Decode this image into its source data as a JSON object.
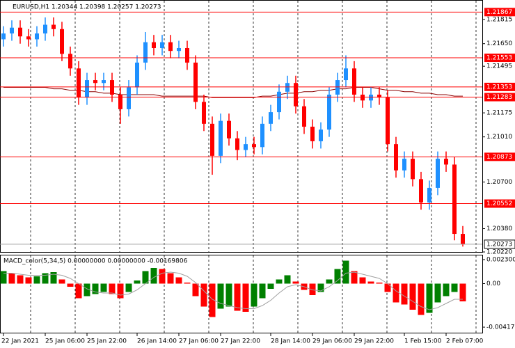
{
  "chart_data": [
    {
      "type": "candlestick",
      "title": "EURUSD,H1  1.20344 1.20398 1.20257 1.20273",
      "categories": [
        "22 Jan 2021",
        null,
        null,
        null,
        null,
        "25 Jan 06:00",
        null,
        null,
        null,
        null,
        "25 Jan 22:00",
        null,
        null,
        null,
        null,
        null,
        "26 Jan 14:00",
        null,
        null,
        null,
        null,
        "27 Jan 06:00",
        null,
        null,
        null,
        null,
        "27 Jan 22:00",
        null,
        null,
        null,
        null,
        null,
        "28 Jan 14:00",
        null,
        null,
        null,
        null,
        "29 Jan 06:00",
        null,
        null,
        null,
        null,
        "29 Jan 22:00",
        null,
        null,
        null,
        null,
        null,
        "1 Feb 15:00",
        null,
        null,
        null,
        null,
        "2 Feb 07:00",
        null,
        null
      ],
      "open": [
        1.2168,
        1.2172,
        1.2176,
        1.217,
        1.2168,
        1.2172,
        1.2178,
        1.2175,
        1.2158,
        1.2148,
        1.2128,
        1.214,
        1.2138,
        1.214,
        1.213,
        1.212,
        1.2135,
        1.2152,
        1.2166,
        1.2162,
        1.2166,
        1.216,
        1.2162,
        1.2152,
        1.2125,
        1.211,
        1.2088,
        1.2112,
        1.21,
        1.2092,
        1.2096,
        1.2094,
        1.211,
        1.2118,
        1.2132,
        1.2138,
        1.2122,
        1.2108,
        1.2098,
        1.2106,
        1.213,
        1.214,
        1.2148,
        1.213,
        1.2126,
        1.213,
        1.2128,
        1.2096,
        1.2078,
        1.2086,
        1.2072,
        1.2056,
        1.2066,
        1.2086,
        1.2082,
        1.20344
      ],
      "high": [
        1.2177,
        1.2181,
        1.2181,
        1.2175,
        1.2177,
        1.2183,
        1.2183,
        1.218,
        1.2163,
        1.2153,
        1.2145,
        1.2145,
        1.2145,
        1.2145,
        1.2135,
        1.214,
        1.2157,
        1.2173,
        1.2171,
        1.2171,
        1.2171,
        1.2167,
        1.2167,
        1.2157,
        1.213,
        1.2115,
        1.2117,
        1.2117,
        1.2105,
        1.2101,
        1.2101,
        1.2115,
        1.2123,
        1.2137,
        1.2143,
        1.2143,
        1.2127,
        1.2113,
        1.2111,
        1.2135,
        1.2145,
        1.2157,
        1.2153,
        1.2135,
        1.2135,
        1.2135,
        1.2133,
        1.2101,
        1.2091,
        1.2091,
        1.2077,
        1.2071,
        1.2091,
        1.2091,
        1.2087,
        1.20398
      ],
      "low": [
        1.2163,
        1.2167,
        1.2165,
        1.2163,
        1.2163,
        1.2167,
        1.217,
        1.2153,
        1.2143,
        1.2123,
        1.2123,
        1.2133,
        1.2133,
        1.2125,
        1.211,
        1.2115,
        1.213,
        1.2147,
        1.2157,
        1.2157,
        1.2155,
        1.2155,
        1.2147,
        1.212,
        1.2105,
        1.2075,
        1.2083,
        1.2095,
        1.2085,
        1.2087,
        1.2089,
        1.2089,
        1.2105,
        1.2113,
        1.2127,
        1.2117,
        1.2103,
        1.2093,
        1.2093,
        1.2101,
        1.2125,
        1.2135,
        1.2125,
        1.2121,
        1.2121,
        1.2123,
        1.2091,
        1.2073,
        1.2073,
        1.2067,
        1.2051,
        1.2051,
        1.2061,
        1.2077,
        1.203,
        1.20257
      ],
      "close": [
        1.2172,
        1.2176,
        1.217,
        1.2168,
        1.2172,
        1.2178,
        1.2175,
        1.2158,
        1.2148,
        1.2128,
        1.214,
        1.2138,
        1.214,
        1.213,
        1.212,
        1.2135,
        1.2152,
        1.2166,
        1.2162,
        1.2166,
        1.216,
        1.2162,
        1.2152,
        1.2125,
        1.211,
        1.2088,
        1.2112,
        1.21,
        1.2092,
        1.2096,
        1.2094,
        1.211,
        1.2118,
        1.2132,
        1.2138,
        1.2122,
        1.2108,
        1.2098,
        1.2106,
        1.213,
        1.214,
        1.2148,
        1.213,
        1.2126,
        1.213,
        1.2128,
        1.2096,
        1.2078,
        1.2086,
        1.2072,
        1.2056,
        1.2066,
        1.2086,
        1.2082,
        1.20344,
        1.20273
      ],
      "ma_values": [
        1.2135,
        1.2135,
        1.2135,
        1.2135,
        1.2135,
        1.2135,
        1.2134,
        1.2134,
        1.2133,
        1.2133,
        1.2132,
        1.2132,
        1.2131,
        1.2131,
        1.213,
        1.213,
        1.213,
        1.213,
        1.213,
        1.2129,
        1.2129,
        1.2129,
        1.2129,
        1.2129,
        1.2129,
        1.2128,
        1.2128,
        1.2128,
        1.2128,
        1.2128,
        1.2128,
        1.2129,
        1.2129,
        1.213,
        1.2131,
        1.2131,
        1.2132,
        1.2132,
        1.2133,
        1.2133,
        1.2134,
        1.2134,
        1.2135,
        1.2135,
        1.2135,
        1.2134,
        1.2133,
        1.2133,
        1.2132,
        1.2132,
        1.2131,
        1.2131,
        1.213,
        1.213,
        1.2129,
        1.2129
      ],
      "ma_color": "#8b0000",
      "up_color": "#1e90ff",
      "down_color": "#ff0000",
      "levels": [
        1.21867,
        1.21553,
        1.21353,
        1.21283,
        1.20873,
        1.20552
      ],
      "level_color": "#ff0000",
      "ylim": [
        1.2022,
        1.21945
      ],
      "yticks": [
        1.21815,
        {
          "value": 1.2165,
          "label": "1.21650"
        },
        1.21495,
        1.21175,
        {
          "value": 1.2101,
          "label": "1.21010"
        },
        {
          "value": 1.207,
          "label": "1.20700"
        },
        {
          "value": 1.2038,
          "label": "1.20380"
        },
        {
          "value": 1.2022,
          "label": "1.20220"
        }
      ]
    },
    {
      "type": "histogram",
      "title": "MACD_color(5,34,5) 0.00000000 0.00000000 -0.00169806",
      "values": [
        0.0012,
        0.001,
        0.0008,
        0.0006,
        0.0007,
        0.001,
        0.0011,
        0.0004,
        -0.0003,
        -0.0014,
        -0.0012,
        -0.001,
        -0.0008,
        -0.001,
        -0.0014,
        -0.0008,
        0.0003,
        0.0012,
        0.0015,
        0.0014,
        0.001,
        0.0006,
        0.0001,
        -0.0012,
        -0.0022,
        -0.0032,
        -0.0024,
        -0.0022,
        -0.0026,
        -0.0027,
        -0.0022,
        -0.0014,
        -0.0005,
        0.0004,
        0.0008,
        0.0002,
        -0.0006,
        -0.0011,
        -0.0008,
        0.0004,
        0.0014,
        0.0022,
        0.0012,
        0.0006,
        0.0002,
        0.0001,
        -0.0008,
        -0.0018,
        -0.002,
        -0.0025,
        -0.003,
        -0.0028,
        -0.0018,
        -0.0012,
        -0.0008,
        -0.0017
      ],
      "signal": [
        0.001,
        0.001,
        0.0009,
        0.0008,
        0.0008,
        0.0008,
        0.0009,
        0.0008,
        0.0005,
        0.0,
        -0.0005,
        -0.0008,
        -0.0009,
        -0.0009,
        -0.0011,
        -0.001,
        -0.0006,
        0.0,
        0.0006,
        0.001,
        0.0011,
        0.001,
        0.0007,
        0.0001,
        -0.0007,
        -0.0015,
        -0.0019,
        -0.0021,
        -0.0023,
        -0.0024,
        -0.0024,
        -0.0021,
        -0.0016,
        -0.0009,
        -0.0003,
        -0.0001,
        -0.0003,
        -0.0006,
        -0.0007,
        -0.0003,
        0.0003,
        0.001,
        0.0011,
        0.0009,
        0.0007,
        0.0005,
        0.0,
        -0.0007,
        -0.0012,
        -0.0017,
        -0.0022,
        -0.0025,
        -0.0023,
        -0.0019,
        -0.0015,
        -0.0015
      ],
      "up_color": "#008000",
      "down_color": "#ff0000",
      "signal_color": "#a0a0a0",
      "ylim": [
        -0.0047,
        0.0027
      ],
      "yticks": [
        0.0023003,
        {
          "value": 0,
          "label": "0.00"
        },
        {
          "value": -0.00417,
          "label": "-0.004170"
        }
      ]
    }
  ]
}
